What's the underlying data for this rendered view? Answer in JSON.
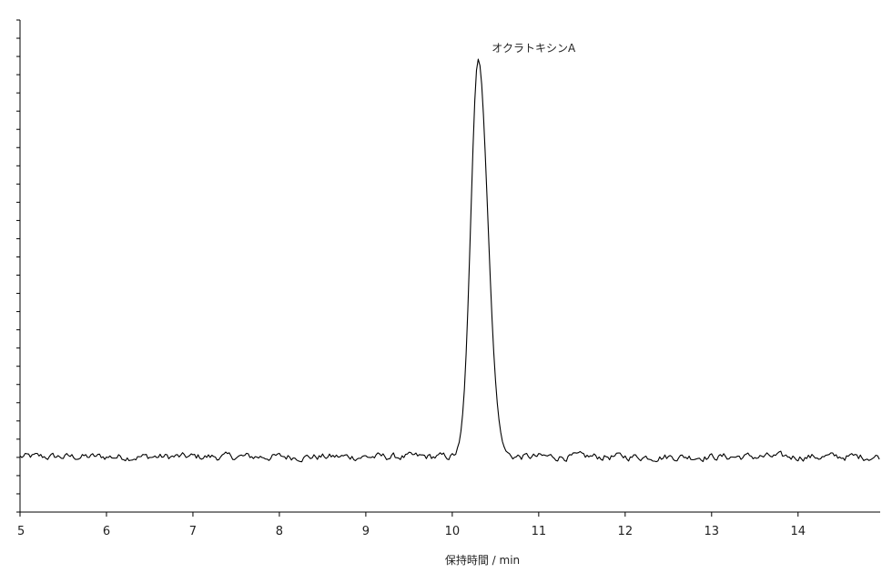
{
  "chart_data": {
    "type": "line",
    "title": "",
    "xlabel": "保持時間 / min",
    "ylabel": "",
    "xlim": [
      5,
      14.95
    ],
    "ylim": [
      0,
      100
    ],
    "grid": false,
    "y_tick_count": 28,
    "x_ticks": [
      5,
      6,
      7,
      8,
      9,
      10,
      11,
      12,
      13,
      14
    ],
    "x_tick_labels": [
      "5",
      "6",
      "7",
      "8",
      "9",
      "10",
      "11",
      "12",
      "13",
      "14"
    ],
    "annotations": [
      {
        "text": "オクラトキシンA",
        "x": 10.33,
        "y": 99
      }
    ],
    "series": [
      {
        "values": {
          "baseline": 11.8,
          "peak_center": 10.3,
          "peak_height": 85,
          "peak_sigma_left": 0.085,
          "peak_sigma_right": 0.11,
          "noise_amplitude": 0.9,
          "sample_step": 0.02
        }
      }
    ],
    "line_color": "#000000"
  }
}
